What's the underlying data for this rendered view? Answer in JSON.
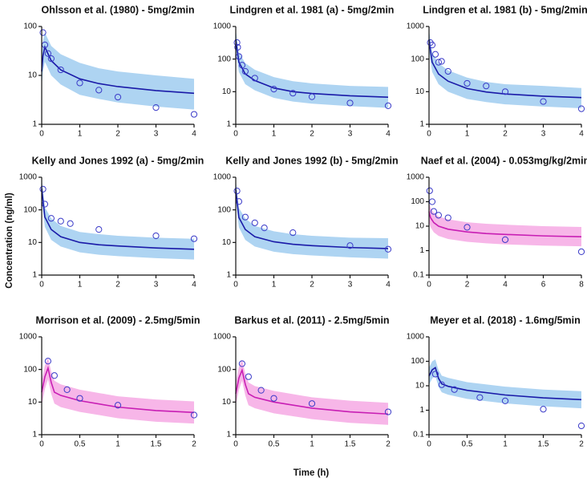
{
  "y_label": "Concentration (ng/ml)",
  "x_label": "Time (h)",
  "chart_data": [
    {
      "type": "line",
      "title": "Ohlsson et al. (1980) - 5mg/2min",
      "log_y": true,
      "xlim": [
        0,
        4
      ],
      "xticks": [
        0,
        1,
        2,
        3,
        4
      ],
      "ylim": [
        1,
        100
      ],
      "yticks": [
        1,
        10,
        100
      ],
      "x": [
        0,
        0.033,
        0.083,
        0.25,
        0.5,
        1,
        1.5,
        2,
        3,
        4
      ],
      "series": [
        {
          "color": "#1a1aa8",
          "values": [
            12,
            25,
            38,
            20,
            13,
            8.5,
            6.8,
            5.9,
            4.9,
            4.3
          ]
        }
      ],
      "band": {
        "color": "#aed4f2",
        "lower": [
          6,
          12,
          19,
          10,
          6.5,
          4,
          3.3,
          2.8,
          2.3,
          2
        ],
        "upper": [
          25,
          50,
          75,
          40,
          27,
          18,
          14,
          12,
          10,
          8.5
        ]
      },
      "points": {
        "color": "#3a3ac8",
        "x": [
          0.033,
          0.083,
          0.167,
          0.25,
          0.5,
          1,
          1.5,
          2,
          3,
          4
        ],
        "values": [
          75,
          42,
          28,
          22,
          13,
          7,
          5,
          3.6,
          2.2,
          1.6
        ]
      }
    },
    {
      "type": "line",
      "title": "Lindgren et al. 1981 (a) - 5mg/2min",
      "log_y": true,
      "xlim": [
        0,
        4
      ],
      "xticks": [
        0,
        1,
        2,
        3,
        4
      ],
      "ylim": [
        1,
        1000
      ],
      "yticks": [
        1,
        10,
        100,
        1000
      ],
      "x": [
        0,
        0.033,
        0.083,
        0.25,
        0.5,
        1,
        1.5,
        2,
        3,
        4
      ],
      "series": [
        {
          "color": "#1a1aa8",
          "values": [
            400,
            200,
            80,
            35,
            22,
            13,
            10,
            8.8,
            7.5,
            6.8
          ]
        }
      ],
      "band": {
        "color": "#aed4f2",
        "lower": [
          200,
          100,
          40,
          17,
          11,
          6.5,
          5,
          4.3,
          3.6,
          3.2
        ],
        "upper": [
          800,
          400,
          160,
          75,
          47,
          28,
          21,
          18,
          15,
          14
        ]
      },
      "points": {
        "color": "#3a3ac8",
        "x": [
          0.033,
          0.05,
          0.083,
          0.167,
          0.25,
          0.5,
          1,
          1.5,
          2,
          3,
          4
        ],
        "values": [
          320,
          230,
          120,
          65,
          42,
          26,
          12,
          9,
          7,
          4.5,
          3.7
        ]
      }
    },
    {
      "type": "line",
      "title": "Lindgren et al. 1981 (b) - 5mg/2min",
      "log_y": true,
      "xlim": [
        0,
        4
      ],
      "xticks": [
        0,
        1,
        2,
        3,
        4
      ],
      "ylim": [
        1,
        1000
      ],
      "yticks": [
        1,
        10,
        100,
        1000
      ],
      "x": [
        0,
        0.033,
        0.083,
        0.25,
        0.5,
        1,
        1.5,
        2,
        3,
        4
      ],
      "series": [
        {
          "color": "#1a1aa8",
          "values": [
            400,
            200,
            80,
            35,
            21,
            12.5,
            9.8,
            8.5,
            7.3,
            6.6
          ]
        }
      ],
      "band": {
        "color": "#aed4f2",
        "lower": [
          200,
          100,
          40,
          17,
          10,
          6,
          4.8,
          4.1,
          3.5,
          3.1
        ],
        "upper": [
          800,
          400,
          160,
          75,
          45,
          27,
          20,
          17,
          15,
          13
        ]
      },
      "points": {
        "color": "#3a3ac8",
        "x": [
          0.033,
          0.083,
          0.167,
          0.25,
          0.33,
          0.5,
          1,
          1.5,
          2,
          3,
          4
        ],
        "values": [
          320,
          270,
          140,
          80,
          85,
          42,
          18,
          15,
          10,
          5,
          3
        ]
      }
    },
    {
      "type": "line",
      "title": "Kelly and Jones 1992 (a) - 5mg/2min",
      "log_y": true,
      "xlim": [
        0,
        4
      ],
      "xticks": [
        0,
        1,
        2,
        3,
        4
      ],
      "ylim": [
        1,
        1000
      ],
      "yticks": [
        1,
        10,
        100,
        1000
      ],
      "x": [
        0,
        0.033,
        0.083,
        0.25,
        0.5,
        1,
        1.5,
        2,
        3,
        4
      ],
      "series": [
        {
          "color": "#1a1aa8",
          "values": [
            450,
            200,
            60,
            25,
            15,
            10,
            8.5,
            7.8,
            6.8,
            6.2
          ]
        }
      ],
      "band": {
        "color": "#aed4f2",
        "lower": [
          220,
          100,
          30,
          12,
          7.5,
          5,
          4.2,
          3.8,
          3.3,
          3
        ],
        "upper": [
          900,
          400,
          120,
          55,
          32,
          21,
          18,
          16,
          14,
          13
        ]
      },
      "points": {
        "color": "#3a3ac8",
        "x": [
          0.033,
          0.083,
          0.25,
          0.5,
          0.75,
          1.5,
          3,
          4
        ],
        "values": [
          430,
          150,
          55,
          45,
          38,
          25,
          16,
          13
        ]
      }
    },
    {
      "type": "line",
      "title": "Kelly and Jones 1992 (b) - 5mg/2min",
      "log_y": true,
      "xlim": [
        0,
        4
      ],
      "xticks": [
        0,
        1,
        2,
        3,
        4
      ],
      "ylim": [
        1,
        1000
      ],
      "yticks": [
        1,
        10,
        100,
        1000
      ],
      "x": [
        0,
        0.033,
        0.083,
        0.25,
        0.5,
        1,
        1.5,
        2,
        3,
        4
      ],
      "series": [
        {
          "color": "#1a1aa8",
          "values": [
            420,
            190,
            58,
            25,
            15,
            10.5,
            8.8,
            8,
            7,
            6.5
          ]
        }
      ],
      "band": {
        "color": "#aed4f2",
        "lower": [
          210,
          95,
          29,
          12,
          7.5,
          5.2,
          4.4,
          4,
          3.5,
          3.2
        ],
        "upper": [
          850,
          380,
          115,
          55,
          32,
          22,
          18,
          16,
          14,
          13.5
        ]
      },
      "points": {
        "color": "#3a3ac8",
        "x": [
          0.033,
          0.083,
          0.25,
          0.5,
          0.75,
          1.5,
          3,
          4
        ],
        "values": [
          380,
          180,
          60,
          40,
          28,
          20,
          8,
          6.2
        ]
      }
    },
    {
      "type": "line",
      "title": "Naef et al. (2004) - 0.053mg/kg/2min",
      "log_y": true,
      "xlim": [
        0,
        8
      ],
      "xticks": [
        0,
        2,
        4,
        6,
        8
      ],
      "ylim": [
        0.1,
        1000
      ],
      "yticks": [
        0.1,
        1,
        10,
        100,
        1000
      ],
      "x": [
        0,
        0.033,
        0.083,
        0.25,
        0.5,
        1,
        2,
        3,
        4,
        6,
        8
      ],
      "series": [
        {
          "color": "#c81eb4",
          "values": [
            40,
            30,
            22,
            14,
            10,
            7.5,
            5.8,
            5,
            4.6,
            4,
            3.7
          ]
        }
      ],
      "band": {
        "color": "#f7b6e8",
        "lower": [
          16,
          12,
          9,
          5.6,
          4,
          3,
          2.3,
          2,
          1.8,
          1.6,
          1.5
        ],
        "upper": [
          100,
          75,
          55,
          35,
          25,
          19,
          14.5,
          12.5,
          11.5,
          10,
          9.3
        ]
      },
      "points": {
        "color": "#3a3ac8",
        "x": [
          0.033,
          0.167,
          0.25,
          0.5,
          1,
          2,
          4,
          8
        ],
        "values": [
          280,
          100,
          40,
          28,
          22,
          9,
          2.8,
          0.9
        ]
      }
    },
    {
      "type": "line",
      "title": "Morrison et al. (2009) - 2.5mg/5min",
      "log_y": true,
      "xlim": [
        0,
        2
      ],
      "xticks": [
        0,
        0.5,
        1,
        1.5,
        2
      ],
      "ylim": [
        1,
        1000
      ],
      "yticks": [
        1,
        10,
        100,
        1000
      ],
      "x": [
        0,
        0.042,
        0.083,
        0.125,
        0.167,
        0.25,
        0.5,
        1,
        1.5,
        2
      ],
      "series": [
        {
          "color": "#c81eb4",
          "values": [
            20,
            60,
            110,
            40,
            20,
            16,
            11,
            7,
            5.5,
            4.8
          ]
        }
      ],
      "band": {
        "color": "#f7b6e8",
        "lower": [
          8,
          25,
          50,
          18,
          9,
          7,
          5,
          3.2,
          2.5,
          2.2
        ],
        "upper": [
          45,
          130,
          230,
          85,
          45,
          35,
          24,
          15,
          12,
          10.5
        ]
      },
      "points": {
        "color": "#3a3ac8",
        "x": [
          0.083,
          0.167,
          0.333,
          0.5,
          1,
          2
        ],
        "values": [
          180,
          65,
          24,
          13,
          8,
          4
        ]
      }
    },
    {
      "type": "line",
      "title": "Barkus et al. (2011) - 2.5mg/5min",
      "log_y": true,
      "xlim": [
        0,
        2
      ],
      "xticks": [
        0,
        0.5,
        1,
        1.5,
        2
      ],
      "ylim": [
        1,
        1000
      ],
      "yticks": [
        1,
        10,
        100,
        1000
      ],
      "x": [
        0,
        0.042,
        0.083,
        0.125,
        0.167,
        0.25,
        0.5,
        1,
        1.5,
        2
      ],
      "series": [
        {
          "color": "#c81eb4",
          "values": [
            18,
            55,
            95,
            35,
            18,
            14,
            10,
            6.5,
            5,
            4.3
          ]
        }
      ],
      "band": {
        "color": "#f7b6e8",
        "lower": [
          8,
          24,
          45,
          16,
          8,
          6.5,
          4.5,
          3,
          2.3,
          2
        ],
        "upper": [
          40,
          120,
          200,
          75,
          40,
          31,
          22,
          14,
          11,
          9.5
        ]
      },
      "points": {
        "color": "#3a3ac8",
        "x": [
          0.083,
          0.167,
          0.333,
          0.5,
          1,
          2
        ],
        "values": [
          150,
          60,
          23,
          13,
          9,
          5
        ]
      }
    },
    {
      "type": "line",
      "title": "Meyer et al. (2018) - 1.6mg/5min",
      "log_y": true,
      "xlim": [
        0,
        2
      ],
      "xticks": [
        0,
        0.5,
        1,
        1.5,
        2
      ],
      "ylim": [
        0.1,
        1000
      ],
      "yticks": [
        0.1,
        1,
        10,
        100,
        1000
      ],
      "x": [
        0,
        0.042,
        0.083,
        0.125,
        0.167,
        0.25,
        0.5,
        1,
        1.5,
        2
      ],
      "series": [
        {
          "color": "#1a1aa8",
          "values": [
            25,
            45,
            55,
            20,
            12,
            9.5,
            6.5,
            4.2,
            3.2,
            2.7
          ]
        }
      ],
      "band": {
        "color": "#aed4f2",
        "lower": [
          11,
          20,
          25,
          9,
          5.4,
          4.3,
          2.9,
          1.9,
          1.45,
          1.2
        ],
        "upper": [
          55,
          100,
          120,
          44,
          26,
          21,
          14,
          9.2,
          7,
          6
        ]
      },
      "points": {
        "color": "#3a3ac8",
        "x": [
          0.083,
          0.167,
          0.333,
          0.667,
          1,
          1.5,
          2
        ],
        "values": [
          30,
          11,
          7,
          3.3,
          2.4,
          1.1,
          0.23
        ]
      }
    }
  ]
}
